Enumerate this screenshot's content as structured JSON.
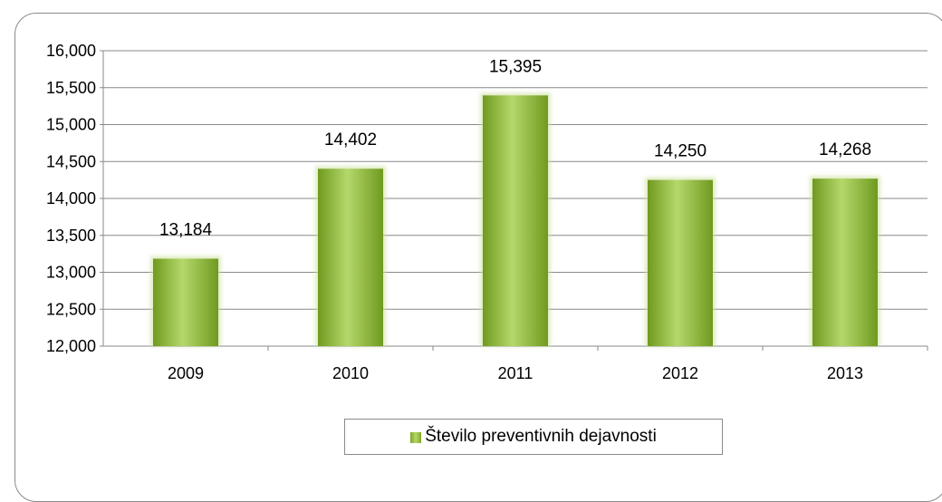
{
  "chart_data": {
    "type": "bar",
    "categories": [
      "2009",
      "2010",
      "2011",
      "2012",
      "2013"
    ],
    "series": [
      {
        "name": "Število preventivnih dejavnosti",
        "values": [
          13184,
          14402,
          15395,
          14250,
          14268
        ]
      }
    ],
    "data_labels": [
      "13,184",
      "14,402",
      "15,395",
      "14,250",
      "14,268"
    ],
    "y_ticks": [
      "12,000",
      "12,500",
      "13,000",
      "13,500",
      "14,000",
      "14,500",
      "15,000",
      "15,500",
      "16,000"
    ],
    "ylim": [
      12000,
      16000
    ],
    "title": "",
    "xlabel": "",
    "ylabel": "",
    "grid": true,
    "legend_position": "bottom",
    "colors": {
      "bar_dark": "#6f9a1f",
      "bar_light": "#b5d86b",
      "grid": "#8a8a8a"
    }
  },
  "legend": {
    "label": "Število preventivnih dejavnosti"
  }
}
